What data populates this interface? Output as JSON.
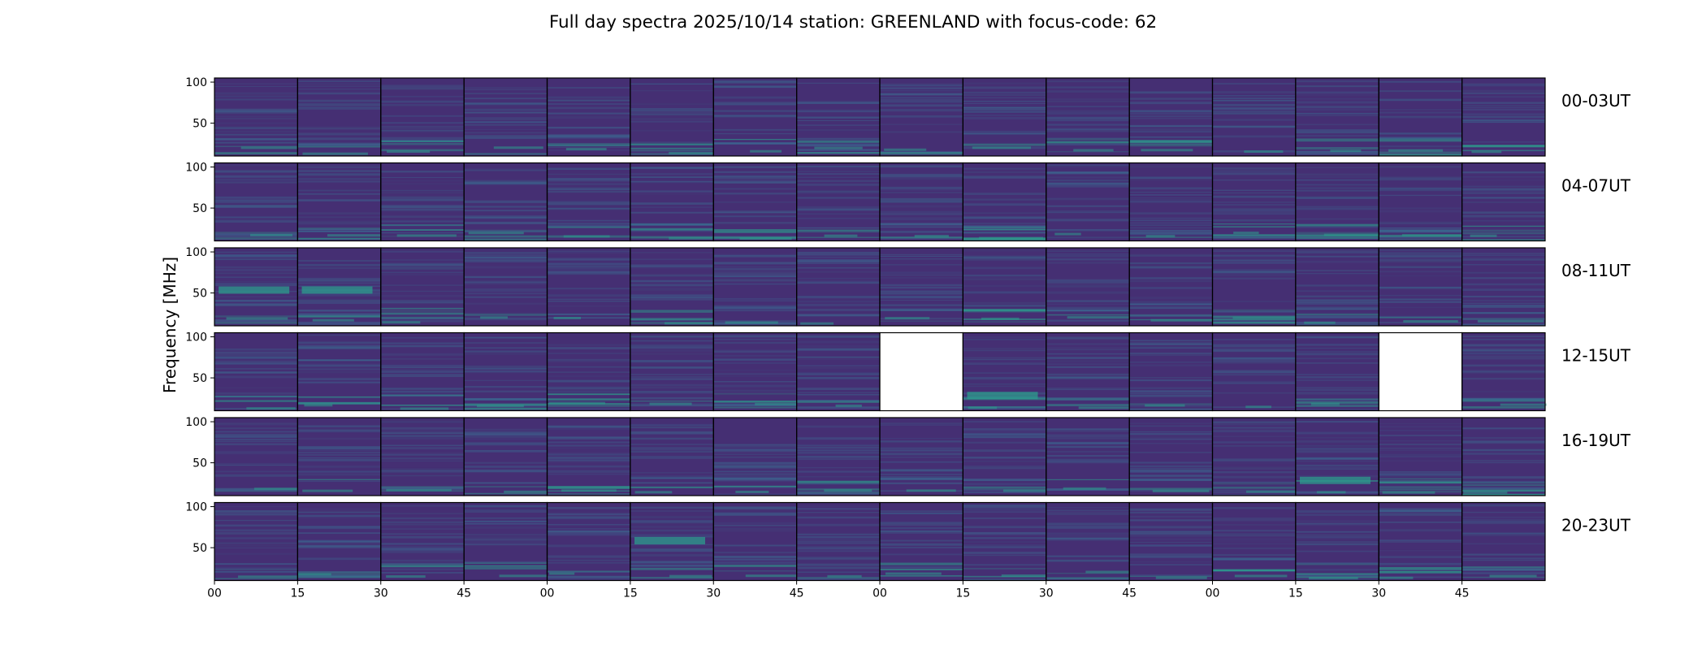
{
  "chart_data": {
    "type": "heatmap",
    "title": "Full day spectra 2025/10/14 station: GREENLAND with focus-code: 62",
    "ylabel": "Frequency [MHz]",
    "xlabel": "",
    "ylim": [
      10,
      105
    ],
    "y_ticks": [
      100,
      50
    ],
    "x_tick_labels": [
      "00",
      "15",
      "30",
      "45",
      "00",
      "15",
      "30",
      "45",
      "00",
      "15",
      "30",
      "45",
      "00",
      "15",
      "30",
      "45"
    ],
    "row_labels": [
      "00-03UT",
      "04-07UT",
      "08-11UT",
      "12-15UT",
      "16-19UT",
      "20-23UT"
    ],
    "tiles_per_row": 16,
    "tile_minutes": 15,
    "colormap": "viridis",
    "colors": {
      "background": "#ffffff",
      "base": "#452f73",
      "line": "#3b6a91",
      "bright": "#2c9c8c",
      "missing": "#ffffff",
      "border": "#000000"
    },
    "missing_tiles": [
      {
        "row_label": "12-15UT",
        "tile": 8
      },
      {
        "row_label": "12-15UT",
        "tile": 14
      }
    ],
    "notable_features": [
      {
        "row_label": "08-11UT",
        "tile": 0,
        "freq_mhz": 55,
        "description": "bright horizontal band"
      },
      {
        "row_label": "08-11UT",
        "tile": 1,
        "freq_mhz": 55,
        "description": "bright horizontal band"
      },
      {
        "row_label": "12-15UT",
        "tile": 9,
        "freq_mhz": 30,
        "description": "broad bright band"
      },
      {
        "row_label": "16-19UT",
        "tile": 13,
        "freq_mhz": 30,
        "description": "broad bright band"
      },
      {
        "row_label": "20-23UT",
        "tile": 5,
        "freq_mhz": 60,
        "description": "bright block"
      }
    ]
  }
}
